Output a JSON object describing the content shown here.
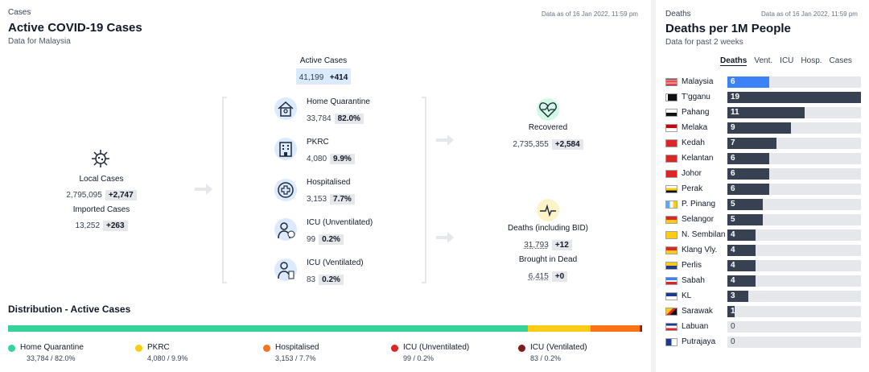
{
  "cases": {
    "section_label": "Cases",
    "title": "Active COVID-19 Cases",
    "subtitle": "Data for Malaysia",
    "as_of": "Data as of 16 Jan 2022, 11:59 pm",
    "active": {
      "label": "Active Cases",
      "value": "41,199",
      "delta": "+414"
    },
    "local": {
      "label": "Local Cases",
      "value": "2,795,095",
      "delta": "+2,747"
    },
    "imported": {
      "label": "Imported Cases",
      "value": "13,252",
      "delta": "+263"
    },
    "home_quarantine": {
      "label": "Home Quarantine",
      "value": "33,784",
      "pct": "82.0%"
    },
    "pkrc": {
      "label": "PKRC",
      "value": "4,080",
      "pct": "9.9%"
    },
    "hospitalised": {
      "label": "Hospitalised",
      "value": "3,153",
      "pct": "7.7%"
    },
    "icu_unvent": {
      "label": "ICU (Unventilated)",
      "value": "99",
      "pct": "0.2%"
    },
    "icu_vent": {
      "label": "ICU (Ventilated)",
      "value": "83",
      "pct": "0.2%"
    },
    "recovered": {
      "label": "Recovered",
      "value": "2,735,355",
      "delta": "+2,584"
    },
    "deaths": {
      "label": "Deaths (including BID)",
      "value": "31,793",
      "delta": "+12"
    },
    "bid": {
      "label": "Brought in Dead",
      "value": "6,415",
      "delta": "+0"
    }
  },
  "distribution": {
    "title": "Distribution - Active Cases",
    "segments": [
      {
        "label": "Home Quarantine",
        "value": "33,784 / 82.0%",
        "fraction": 0.82,
        "color": "#34d399"
      },
      {
        "label": "PKRC",
        "value": "4,080 / 9.9%",
        "fraction": 0.099,
        "color": "#facc15"
      },
      {
        "label": "Hospitalised",
        "value": "3,153 / 7.7%",
        "fraction": 0.077,
        "color": "#f97316"
      },
      {
        "label": "ICU (Unventilated)",
        "value": "99 / 0.2%",
        "fraction": 0.002,
        "color": "#dc2626"
      },
      {
        "label": "ICU (Ventilated)",
        "value": "83 / 0.2%",
        "fraction": 0.002,
        "color": "#7f1d1d"
      }
    ]
  },
  "deaths_panel": {
    "section_label": "Deaths",
    "title": "Deaths per 1M People",
    "subtitle": "Data for past 2 weeks",
    "as_of": "Data as of 16 Jan 2022, 11:59 pm",
    "tabs": [
      "Deaths",
      "Vent.",
      "ICU",
      "Hosp.",
      "Cases"
    ],
    "active_tab": "Deaths",
    "max": 19,
    "states": [
      {
        "name": "Malaysia",
        "value": 6,
        "highlight": true,
        "flag": "flag-malaysia"
      },
      {
        "name": "T'gganu",
        "value": 19,
        "flag": "flag-terengganu"
      },
      {
        "name": "Pahang",
        "value": 11,
        "flag": "flag-pahang"
      },
      {
        "name": "Melaka",
        "value": 9,
        "flag": "flag-melaka"
      },
      {
        "name": "Kedah",
        "value": 7,
        "flag": "flag-kedah"
      },
      {
        "name": "Kelantan",
        "value": 6,
        "flag": "flag-kelantan"
      },
      {
        "name": "Johor",
        "value": 6,
        "flag": "flag-johor"
      },
      {
        "name": "Perak",
        "value": 6,
        "flag": "flag-perak"
      },
      {
        "name": "P. Pinang",
        "value": 5,
        "flag": "flag-penang"
      },
      {
        "name": "Selangor",
        "value": 5,
        "flag": "flag-selangor"
      },
      {
        "name": "N. Sembilan",
        "value": 4,
        "flag": "flag-negeri-sembilan"
      },
      {
        "name": "Klang Vly.",
        "value": 4,
        "flag": "flag-klang-valley"
      },
      {
        "name": "Perlis",
        "value": 4,
        "flag": "flag-perlis"
      },
      {
        "name": "Sabah",
        "value": 4,
        "flag": "flag-sabah"
      },
      {
        "name": "KL",
        "value": 3,
        "flag": "flag-kl"
      },
      {
        "name": "Sarawak",
        "value": 1,
        "flag": "flag-sarawak"
      },
      {
        "name": "Labuan",
        "value": 0,
        "flag": "flag-labuan"
      },
      {
        "name": "Putrajaya",
        "value": 0,
        "flag": "flag-putrajaya"
      }
    ]
  }
}
